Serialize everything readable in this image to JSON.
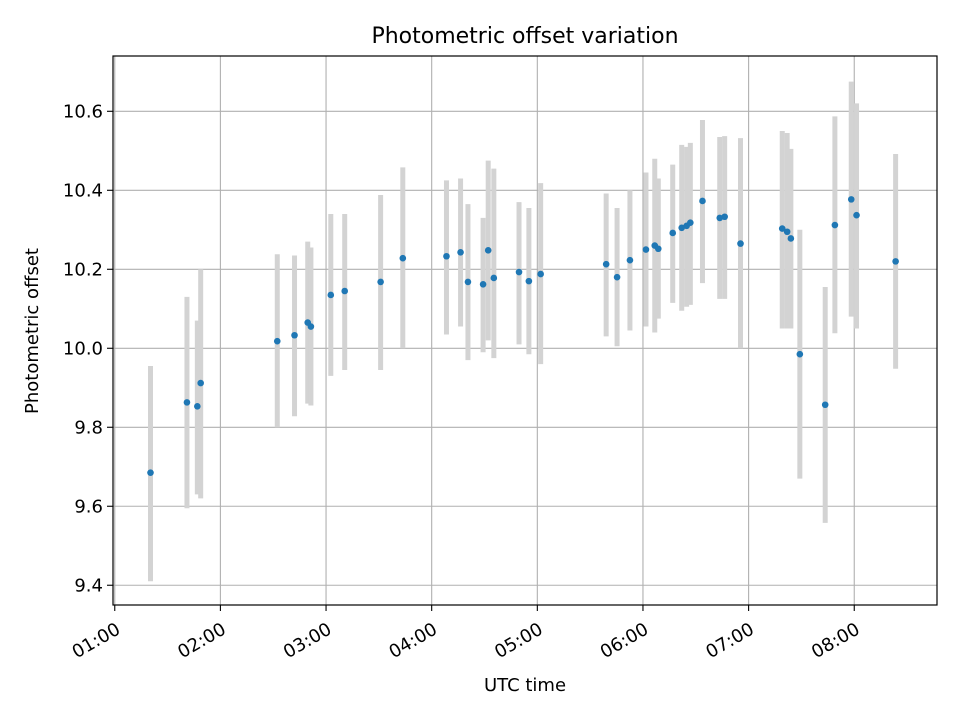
{
  "chart_data": {
    "type": "scatter",
    "title": "Photometric offset variation",
    "xlabel": "UTC time",
    "ylabel": "Photometric offset",
    "x_tick_labels": [
      "01:00",
      "02:00",
      "03:00",
      "04:00",
      "05:00",
      "06:00",
      "07:00",
      "08:00"
    ],
    "x_tick_minutes": [
      60,
      120,
      180,
      240,
      300,
      360,
      420,
      480
    ],
    "y_tick_labels": [
      "9.4",
      "9.6",
      "9.8",
      "10.0",
      "10.2",
      "10.4",
      "10.6"
    ],
    "y_tick_values": [
      9.4,
      9.6,
      9.8,
      10.0,
      10.2,
      10.4,
      10.6
    ],
    "xlim_minutes": [
      59,
      527
    ],
    "ylim": [
      9.35,
      10.74
    ],
    "grid": true,
    "colors": {
      "point": "#1f77b4",
      "errorbar": "#d3d3d3",
      "grid": "#b0b0b0"
    },
    "points": [
      {
        "t": 80.3,
        "y": 9.685,
        "lo": 9.41,
        "hi": 9.955
      },
      {
        "t": 101.0,
        "y": 9.863,
        "lo": 9.595,
        "hi": 10.13
      },
      {
        "t": 106.9,
        "y": 9.853,
        "lo": 9.63,
        "hi": 10.07
      },
      {
        "t": 108.8,
        "y": 9.912,
        "lo": 9.62,
        "hi": 10.2
      },
      {
        "t": 152.3,
        "y": 10.018,
        "lo": 9.8,
        "hi": 10.238
      },
      {
        "t": 162.1,
        "y": 10.033,
        "lo": 9.828,
        "hi": 10.235
      },
      {
        "t": 169.6,
        "y": 10.065,
        "lo": 9.86,
        "hi": 10.27
      },
      {
        "t": 171.4,
        "y": 10.055,
        "lo": 9.855,
        "hi": 10.255
      },
      {
        "t": 182.7,
        "y": 10.135,
        "lo": 9.93,
        "hi": 10.34
      },
      {
        "t": 190.6,
        "y": 10.145,
        "lo": 9.945,
        "hi": 10.34
      },
      {
        "t": 211.0,
        "y": 10.168,
        "lo": 9.945,
        "hi": 10.388
      },
      {
        "t": 223.6,
        "y": 10.228,
        "lo": 10.0,
        "hi": 10.458
      },
      {
        "t": 248.4,
        "y": 10.233,
        "lo": 10.035,
        "hi": 10.425
      },
      {
        "t": 256.4,
        "y": 10.243,
        "lo": 10.055,
        "hi": 10.43
      },
      {
        "t": 260.6,
        "y": 10.168,
        "lo": 9.97,
        "hi": 10.365
      },
      {
        "t": 269.2,
        "y": 10.162,
        "lo": 9.99,
        "hi": 10.33
      },
      {
        "t": 272.1,
        "y": 10.248,
        "lo": 10.02,
        "hi": 10.475
      },
      {
        "t": 275.3,
        "y": 10.178,
        "lo": 9.975,
        "hi": 10.455
      },
      {
        "t": 289.6,
        "y": 10.193,
        "lo": 10.01,
        "hi": 10.37
      },
      {
        "t": 295.2,
        "y": 10.17,
        "lo": 9.985,
        "hi": 10.355
      },
      {
        "t": 301.9,
        "y": 10.188,
        "lo": 9.96,
        "hi": 10.418
      },
      {
        "t": 339.1,
        "y": 10.213,
        "lo": 10.03,
        "hi": 10.392
      },
      {
        "t": 345.3,
        "y": 10.18,
        "lo": 10.005,
        "hi": 10.355
      },
      {
        "t": 352.6,
        "y": 10.223,
        "lo": 10.045,
        "hi": 10.4
      },
      {
        "t": 361.7,
        "y": 10.25,
        "lo": 10.055,
        "hi": 10.445
      },
      {
        "t": 366.7,
        "y": 10.26,
        "lo": 10.04,
        "hi": 10.48
      },
      {
        "t": 368.7,
        "y": 10.252,
        "lo": 10.075,
        "hi": 10.43
      },
      {
        "t": 376.9,
        "y": 10.292,
        "lo": 10.115,
        "hi": 10.465
      },
      {
        "t": 382.0,
        "y": 10.305,
        "lo": 10.095,
        "hi": 10.515
      },
      {
        "t": 384.8,
        "y": 10.31,
        "lo": 10.105,
        "hi": 10.51
      },
      {
        "t": 386.9,
        "y": 10.318,
        "lo": 10.11,
        "hi": 10.52
      },
      {
        "t": 393.8,
        "y": 10.373,
        "lo": 10.165,
        "hi": 10.578
      },
      {
        "t": 403.6,
        "y": 10.33,
        "lo": 10.125,
        "hi": 10.535
      },
      {
        "t": 406.4,
        "y": 10.333,
        "lo": 10.125,
        "hi": 10.537
      },
      {
        "t": 415.4,
        "y": 10.265,
        "lo": 10.0,
        "hi": 10.532
      },
      {
        "t": 439.1,
        "y": 10.303,
        "lo": 10.05,
        "hi": 10.55
      },
      {
        "t": 441.9,
        "y": 10.295,
        "lo": 10.05,
        "hi": 10.545
      },
      {
        "t": 444.0,
        "y": 10.278,
        "lo": 10.05,
        "hi": 10.505
      },
      {
        "t": 449.1,
        "y": 9.985,
        "lo": 9.67,
        "hi": 10.3
      },
      {
        "t": 463.5,
        "y": 9.857,
        "lo": 9.558,
        "hi": 10.155
      },
      {
        "t": 469.0,
        "y": 10.312,
        "lo": 10.038,
        "hi": 10.587
      },
      {
        "t": 478.3,
        "y": 10.377,
        "lo": 10.08,
        "hi": 10.675
      },
      {
        "t": 481.3,
        "y": 10.337,
        "lo": 10.05,
        "hi": 10.62
      },
      {
        "t": 503.5,
        "y": 10.22,
        "lo": 9.948,
        "hi": 10.492
      }
    ]
  }
}
